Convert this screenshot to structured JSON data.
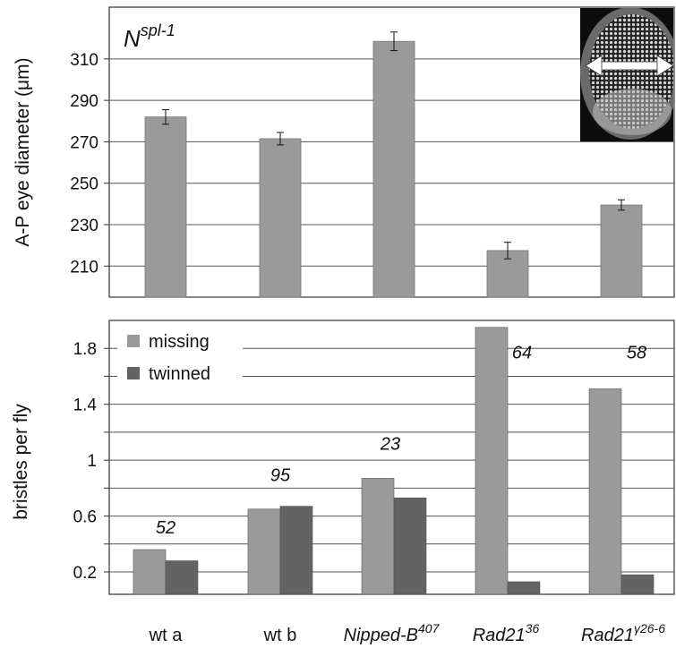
{
  "chart_data": [
    {
      "type": "bar",
      "panel_label": "N",
      "panel_label_sup": "spl-1",
      "ylabel_main": "A-P eye diameter (",
      "ylabel_unit": "μm",
      "ylabel_end": ")",
      "ylim": [
        195,
        335
      ],
      "yticks": [
        "210",
        "230",
        "250",
        "270",
        "290",
        "310"
      ],
      "categories": [
        "wt a",
        "wt b",
        "Nipped-B407",
        "Rad2136",
        "Rad21γ26-6"
      ],
      "values": [
        282,
        271.5,
        318.5,
        217.5,
        239.5
      ],
      "errors": [
        3.5,
        3,
        4.5,
        4,
        2.5
      ],
      "inset": "scanning electron micrograph of a fly eye with a horizontal double-headed arrow",
      "colors": {
        "bar": "#9a9a9a"
      }
    },
    {
      "type": "bar",
      "ylabel": "bristles per fly",
      "ylim": [
        0.04,
        2.0
      ],
      "yticks": [
        "0.2",
        "0.6",
        "1",
        "1.4",
        "1.8"
      ],
      "series": [
        {
          "name": "missing",
          "values": [
            0.36,
            0.65,
            0.87,
            1.95,
            1.51
          ],
          "color": "#9a9a9a"
        },
        {
          "name": "twinned",
          "values": [
            0.28,
            0.67,
            0.73,
            0.13,
            0.18
          ],
          "color": "#636363"
        }
      ],
      "annotations": [
        "52",
        "95",
        "23",
        "64",
        "58"
      ],
      "grid": true,
      "legend": "top-left"
    }
  ],
  "x_labels": [
    {
      "base": "wt a",
      "sup": "",
      "italic": false
    },
    {
      "base": "wt b",
      "sup": "",
      "italic": false
    },
    {
      "base": "Nipped-B",
      "sup": "407",
      "italic": true
    },
    {
      "base": "Rad21",
      "sup": "36",
      "italic": true
    },
    {
      "base": "Rad21",
      "sup": "γ26-6",
      "italic": true
    }
  ]
}
